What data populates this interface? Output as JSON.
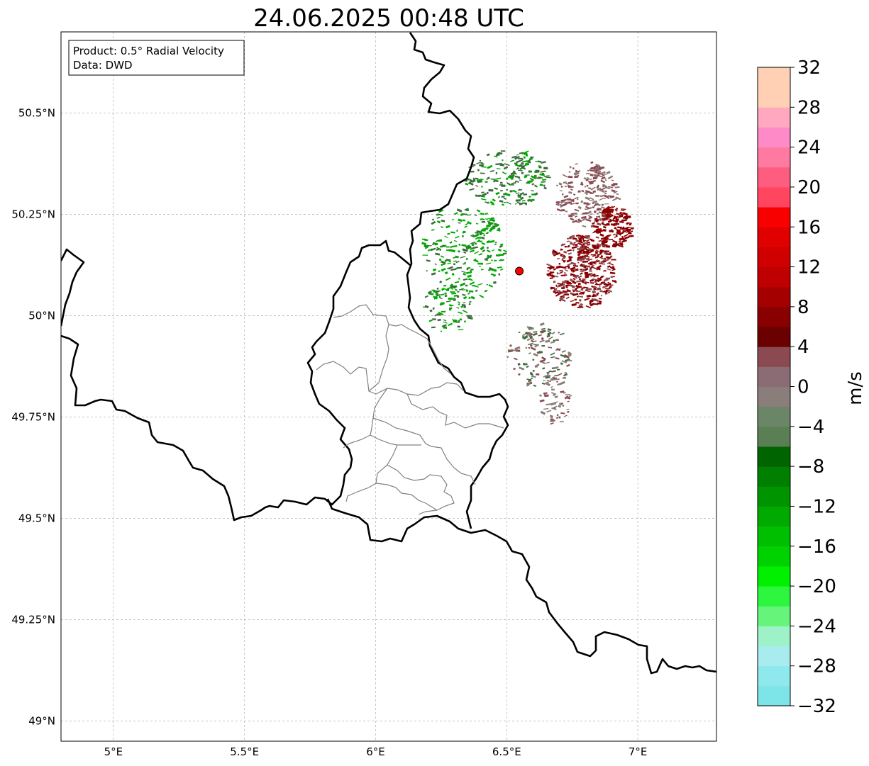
{
  "title": "24.06.2025 00:48 UTC",
  "info": {
    "product": "Product: 0.5° Radial Velocity",
    "data": "Data: DWD"
  },
  "map": {
    "lon_range": [
      4.8,
      7.3
    ],
    "lat_range": [
      48.95,
      50.7
    ],
    "lon_ticks": [
      {
        "value": 5.0,
        "label": "5°E"
      },
      {
        "value": 5.5,
        "label": "5.5°E"
      },
      {
        "value": 6.0,
        "label": "6°E"
      },
      {
        "value": 6.5,
        "label": "6.5°E"
      },
      {
        "value": 7.0,
        "label": "7°E"
      }
    ],
    "lat_ticks": [
      {
        "value": 49.0,
        "label": "49°N"
      },
      {
        "value": 49.25,
        "label": "49.25°N"
      },
      {
        "value": 49.5,
        "label": "49.5°N"
      },
      {
        "value": 49.75,
        "label": "49.75°N"
      },
      {
        "value": 50.0,
        "label": "50°N"
      },
      {
        "value": 50.25,
        "label": "50.25°N"
      },
      {
        "value": 50.5,
        "label": "50.5°N"
      }
    ],
    "gridlines": true,
    "radar_site": {
      "lon": 6.548,
      "lat": 50.11,
      "color": "#ff0000"
    },
    "border_color": "#000000",
    "admin_border_color": "#808080"
  },
  "colorbar": {
    "unit": "m/s",
    "min": -32,
    "max": 32,
    "step": 2,
    "tick_labels": [
      "32",
      "28",
      "24",
      "20",
      "16",
      "12",
      "8",
      "4",
      "0",
      "−4",
      "−8",
      "−12",
      "−16",
      "−20",
      "−24",
      "−28",
      "−32"
    ],
    "colors": [
      "#7de5e8",
      "#8ee8ec",
      "#a8ecf0",
      "#9ef2c8",
      "#66f57a",
      "#2cf73e",
      "#00f000",
      "#00d200",
      "#00bf00",
      "#00aa00",
      "#009400",
      "#007f00",
      "#006400",
      "#5b7f55",
      "#6b8666",
      "#8a7e7a",
      "#8c6c74",
      "#8b4a52",
      "#6a0000",
      "#880000",
      "#a50000",
      "#bf0000",
      "#d00000",
      "#e00000",
      "#f80000",
      "#ff4560",
      "#ff5d80",
      "#ff7aa0",
      "#ff8ac8",
      "#ffa8c0",
      "#ffd0b4",
      "#ffd0b4"
    ]
  },
  "echoes": {
    "colors": {
      "strong_inbound": "#00aa00",
      "weak_inbound": "#3c6b3c",
      "near_zero": "#8a7e7a",
      "weak_outbound": "#8b4a52",
      "strong_outbound": "#8b0000"
    }
  }
}
